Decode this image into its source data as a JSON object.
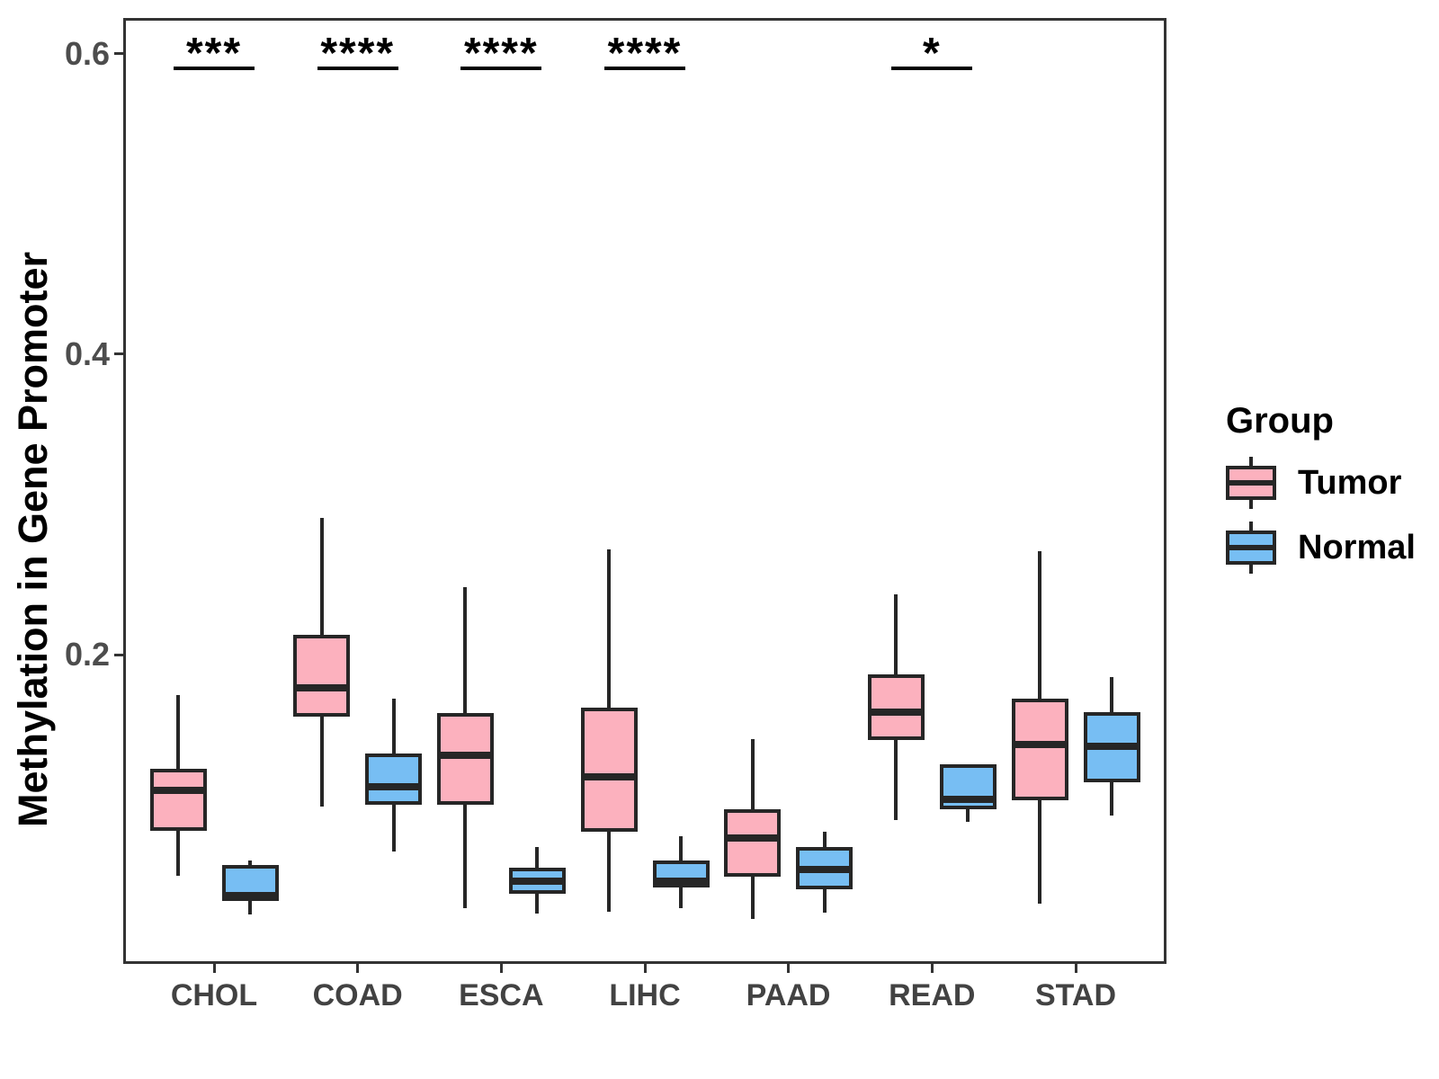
{
  "chart_data": {
    "type": "boxplot",
    "title": "",
    "xlabel": "",
    "ylabel": "Methylation in Gene Promoter",
    "categories": [
      "CHOL",
      "COAD",
      "ESCA",
      "LIHC",
      "PAAD",
      "READ",
      "STAD"
    ],
    "ytick_labels": [
      "0.2",
      "0.4",
      "0.6"
    ],
    "ytick_values": [
      0.2,
      0.4,
      0.6
    ],
    "ylim": [
      0,
      0.62
    ],
    "grid": false,
    "legend": {
      "title": "Group",
      "position": "right",
      "entries": [
        {
          "label": "Tumor",
          "color": "#FCB1BE"
        },
        {
          "label": "Normal",
          "color": "#77BEF3"
        }
      ]
    },
    "significance": [
      {
        "category": "CHOL",
        "label": "***"
      },
      {
        "category": "COAD",
        "label": "****"
      },
      {
        "category": "ESCA",
        "label": "****"
      },
      {
        "category": "LIHC",
        "label": "****"
      },
      {
        "category": "READ",
        "label": "*"
      }
    ],
    "series": [
      {
        "name": "Tumor",
        "color": "#FCB1BE",
        "boxes": [
          {
            "category": "CHOL",
            "whisker_low": 0.053,
            "q1": 0.083,
            "median": 0.11,
            "q3": 0.124,
            "whisker_high": 0.173
          },
          {
            "category": "COAD",
            "whisker_low": 0.099,
            "q1": 0.159,
            "median": 0.178,
            "q3": 0.213,
            "whisker_high": 0.291
          },
          {
            "category": "ESCA",
            "whisker_low": 0.031,
            "q1": 0.1,
            "median": 0.133,
            "q3": 0.161,
            "whisker_high": 0.245
          },
          {
            "category": "LIHC",
            "whisker_low": 0.029,
            "q1": 0.082,
            "median": 0.119,
            "q3": 0.165,
            "whisker_high": 0.27
          },
          {
            "category": "PAAD",
            "whisker_low": 0.024,
            "q1": 0.052,
            "median": 0.078,
            "q3": 0.097,
            "whisker_high": 0.144
          },
          {
            "category": "READ",
            "whisker_low": 0.09,
            "q1": 0.143,
            "median": 0.162,
            "q3": 0.187,
            "whisker_high": 0.24
          },
          {
            "category": "STAD",
            "whisker_low": 0.034,
            "q1": 0.103,
            "median": 0.14,
            "q3": 0.171,
            "whisker_high": 0.269
          }
        ]
      },
      {
        "name": "Normal",
        "color": "#77BEF3",
        "boxes": [
          {
            "category": "CHOL",
            "whisker_low": 0.027,
            "q1": 0.036,
            "median": 0.04,
            "q3": 0.06,
            "whisker_high": 0.063
          },
          {
            "category": "COAD",
            "whisker_low": 0.069,
            "q1": 0.1,
            "median": 0.112,
            "q3": 0.134,
            "whisker_high": 0.171
          },
          {
            "category": "ESCA",
            "whisker_low": 0.028,
            "q1": 0.041,
            "median": 0.049,
            "q3": 0.058,
            "whisker_high": 0.072
          },
          {
            "category": "LIHC",
            "whisker_low": 0.031,
            "q1": 0.045,
            "median": 0.049,
            "q3": 0.063,
            "whisker_high": 0.079
          },
          {
            "category": "PAAD",
            "whisker_low": 0.028,
            "q1": 0.044,
            "median": 0.057,
            "q3": 0.072,
            "whisker_high": 0.082
          },
          {
            "category": "READ",
            "whisker_low": 0.089,
            "q1": 0.097,
            "median": 0.104,
            "q3": 0.127,
            "whisker_high": 0.127
          },
          {
            "category": "STAD",
            "whisker_low": 0.093,
            "q1": 0.115,
            "median": 0.139,
            "q3": 0.162,
            "whisker_high": 0.185
          }
        ]
      }
    ],
    "colors": {
      "box_border": "#262626",
      "axis": "#333333",
      "tick_label": "#4d4d4d",
      "significance": "#000000"
    }
  }
}
